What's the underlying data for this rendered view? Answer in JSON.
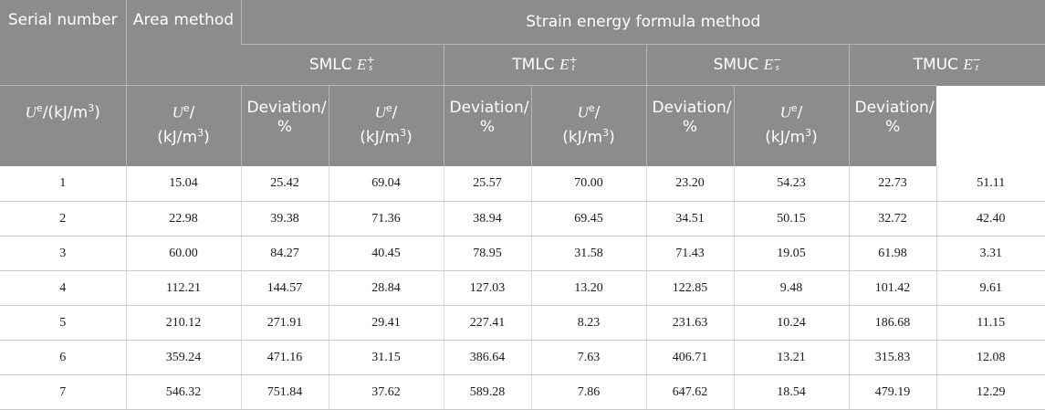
{
  "header": {
    "serial": "Serial number",
    "area": "Area method",
    "strain": "Strain energy formula method",
    "groups": [
      {
        "name": "SMLC",
        "sym": "E",
        "sub": "s",
        "sup": "+"
      },
      {
        "name": "TMLC",
        "sym": "E",
        "sub": "t",
        "sup": "+"
      },
      {
        "name": "SMUC",
        "sym": "E",
        "sub": "s",
        "sup": "−"
      },
      {
        "name": "TMUC",
        "sym": "E",
        "sub": "t",
        "sup": "−"
      }
    ],
    "ue_area": {
      "U": "U",
      "e": "e",
      "rest": "/(kJ/m",
      "cube": "3",
      "close": ")"
    },
    "ue": {
      "U": "U",
      "e": "e",
      "slash": "/",
      "unit": "(kJ/m",
      "cube": "3",
      "close": ")"
    },
    "deviation": {
      "line1": "Deviation/",
      "line2": "%"
    }
  },
  "rows": [
    [
      "1",
      "15.04",
      "25.42",
      "69.04",
      "25.57",
      "70.00",
      "23.20",
      "54.23",
      "22.73",
      "51.11"
    ],
    [
      "2",
      "22.98",
      "39.38",
      "71.36",
      "38.94",
      "69.45",
      "34.51",
      "50.15",
      "32.72",
      "42.40"
    ],
    [
      "3",
      "60.00",
      "84.27",
      "40.45",
      "78.95",
      "31.58",
      "71.43",
      "19.05",
      "61.98",
      "3.31"
    ],
    [
      "4",
      "112.21",
      "144.57",
      "28.84",
      "127.03",
      "13.20",
      "122.85",
      "9.48",
      "101.42",
      "9.61"
    ],
    [
      "5",
      "210.12",
      "271.91",
      "29.41",
      "227.41",
      "8.23",
      "231.63",
      "10.24",
      "186.68",
      "11.15"
    ],
    [
      "6",
      "359.24",
      "471.16",
      "31.15",
      "386.64",
      "7.63",
      "406.71",
      "13.21",
      "315.83",
      "12.08"
    ],
    [
      "7",
      "546.32",
      "751.84",
      "37.62",
      "589.28",
      "7.86",
      "647.62",
      "18.54",
      "479.19",
      "12.29"
    ]
  ]
}
